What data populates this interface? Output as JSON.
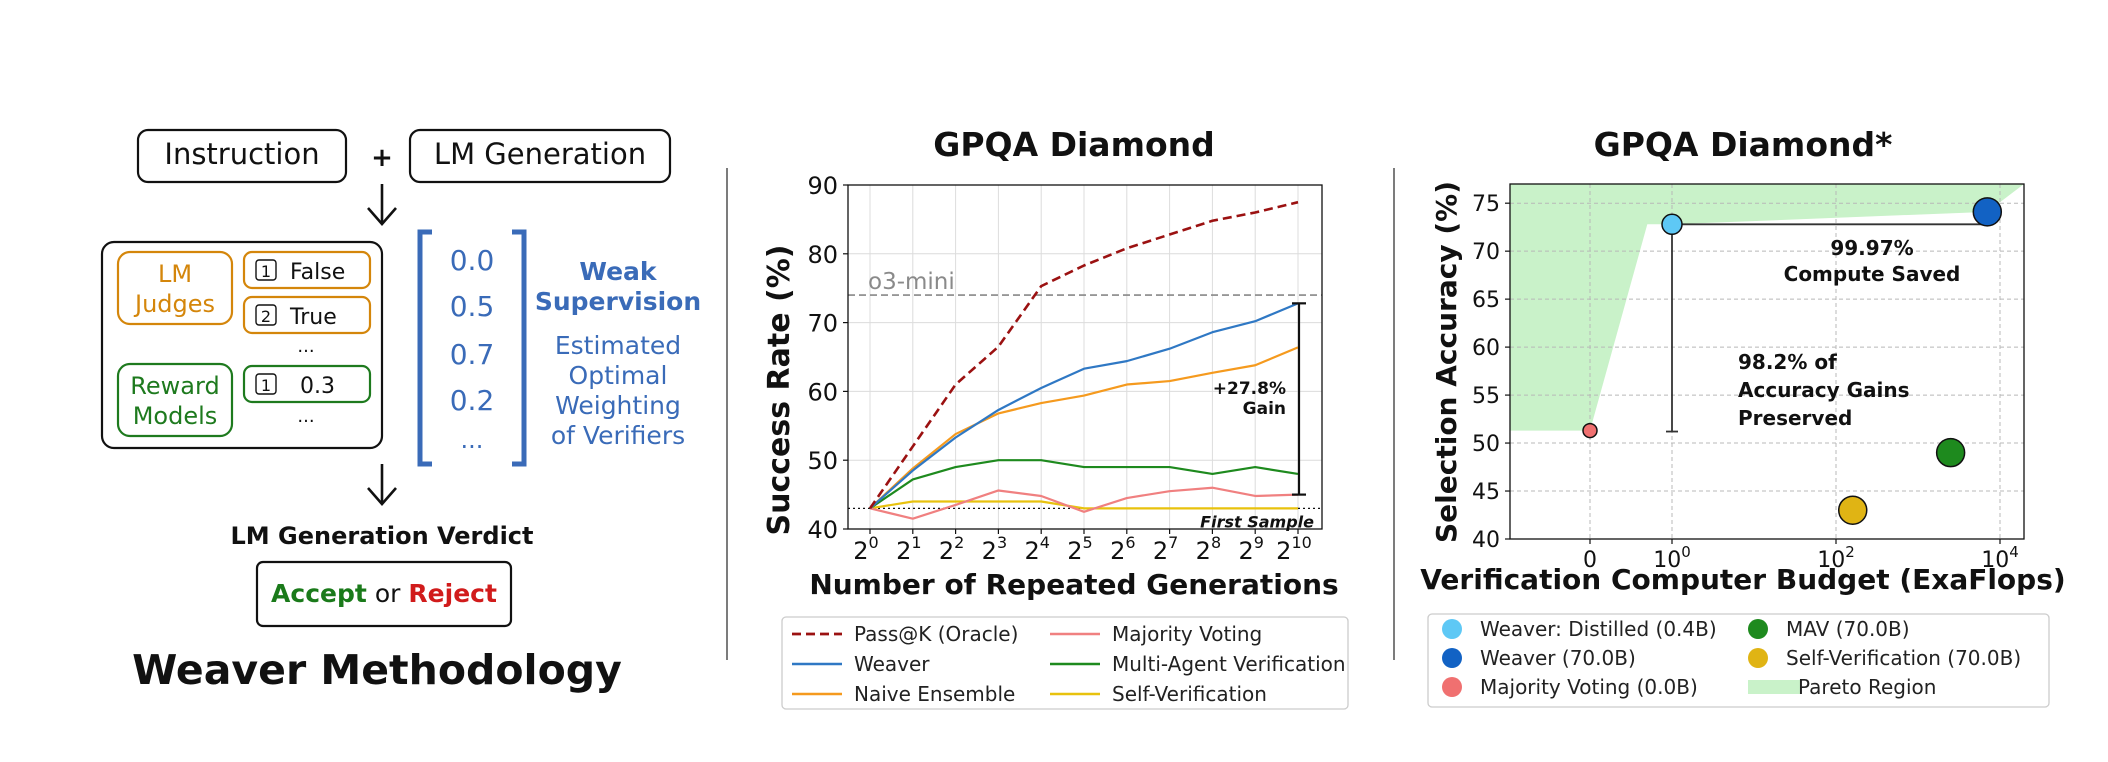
{
  "methodology": {
    "instruction": "Instruction",
    "plus": "+",
    "lm_generation": "LM Generation",
    "lm_judges": [
      "LM",
      "Judges"
    ],
    "judge_rows": [
      {
        "index": "1",
        "value": "False"
      },
      {
        "index": "2",
        "value": "True"
      }
    ],
    "judge_ellipsis": "...",
    "reward_models": [
      "Reward",
      "Models"
    ],
    "reward_rows": [
      {
        "index": "1",
        "value": "0.3"
      }
    ],
    "reward_ellipsis": "...",
    "weights": [
      "0.0",
      "0.5",
      "0.7",
      "0.2",
      "..."
    ],
    "weak_supervision": [
      "Weak",
      "Supervision"
    ],
    "estimated": [
      "Estimated",
      "Optimal",
      "Weighting",
      "of Verifiers"
    ],
    "verdict_title": "LM Generation Verdict",
    "accept": "Accept",
    "or": "or",
    "reject": "Reject",
    "title": "Weaver Methodology",
    "colors": {
      "judge": "#d4860b",
      "reward": "#1e7a1e",
      "weights": "#3a6bb8",
      "accept": "#1a7a1a",
      "reject": "#d11b1b"
    }
  },
  "chart_data": [
    {
      "type": "line",
      "title": "GPQA Diamond",
      "xlabel": "Number of Repeated Generations",
      "ylabel": "Success Rate (%)",
      "x": [
        0,
        1,
        2,
        3,
        4,
        5,
        6,
        7,
        8,
        9,
        10
      ],
      "x_tick_labels": [
        {
          "base": "2",
          "exp": "0"
        },
        {
          "base": "2",
          "exp": "1"
        },
        {
          "base": "2",
          "exp": "2"
        },
        {
          "base": "2",
          "exp": "3"
        },
        {
          "base": "2",
          "exp": "4"
        },
        {
          "base": "2",
          "exp": "5"
        },
        {
          "base": "2",
          "exp": "6"
        },
        {
          "base": "2",
          "exp": "7"
        },
        {
          "base": "2",
          "exp": "8"
        },
        {
          "base": "2",
          "exp": "9"
        },
        {
          "base": "2",
          "exp": "10"
        }
      ],
      "ylim": [
        40,
        90
      ],
      "y_ticks": [
        40,
        50,
        60,
        70,
        80,
        90
      ],
      "grid": true,
      "series": [
        {
          "name": "Pass@K (Oracle)",
          "color": "#9b1111",
          "dash": true,
          "values": [
            43,
            52,
            61,
            66.5,
            75.3,
            78.3,
            80.8,
            82.8,
            84.8,
            86,
            87.5
          ]
        },
        {
          "name": "Weaver",
          "color": "#2f78c4",
          "dash": false,
          "values": [
            43,
            48.5,
            53.3,
            57.3,
            60.5,
            63.3,
            64.4,
            66.2,
            68.6,
            70.2,
            72.8
          ]
        },
        {
          "name": "Naive Ensemble",
          "color": "#f59a1e",
          "dash": false,
          "values": [
            43,
            48.8,
            53.8,
            56.8,
            58.3,
            59.4,
            61,
            61.5,
            62.7,
            63.8,
            66.4
          ]
        },
        {
          "name": "Majority Voting",
          "color": "#f08080",
          "dash": false,
          "values": [
            43,
            41.5,
            43.5,
            45.6,
            44.8,
            42.5,
            44.5,
            45.5,
            46,
            44.8,
            45
          ]
        },
        {
          "name": "Multi-Agent Verification",
          "color": "#1e8a1e",
          "dash": false,
          "values": [
            43,
            47.2,
            49,
            50,
            50,
            49,
            49,
            49,
            48,
            49,
            48
          ]
        },
        {
          "name": "Self-Verification",
          "color": "#e8c20d",
          "dash": false,
          "values": [
            43,
            44,
            44,
            44,
            44,
            43,
            43,
            43,
            43,
            43,
            43
          ]
        }
      ],
      "reference_lines": [
        {
          "label": "o3-mini",
          "value": 74
        },
        {
          "label": "First Sample",
          "value": 43
        }
      ],
      "gain_annotation": {
        "label": [
          "+27.8%",
          "Gain"
        ],
        "from": 45,
        "to": 72.8,
        "x": 10
      }
    },
    {
      "type": "scatter",
      "title": "GPQA Diamond*",
      "xlabel": "Verification Computer Budget (ExaFlops)",
      "ylabel": "Selection Accuracy (%)",
      "x_scale": "symlog",
      "x_tick_labels": [
        {
          "base": "0",
          "exp": ""
        },
        {
          "base": "10",
          "exp": "0"
        },
        {
          "base": "10",
          "exp": "2"
        },
        {
          "base": "10",
          "exp": "4"
        }
      ],
      "ylim": [
        40,
        77
      ],
      "y_ticks": [
        40,
        45,
        50,
        55,
        60,
        65,
        70,
        75
      ],
      "grid": true,
      "points": [
        {
          "name": "Weaver: Distilled (0.4B)",
          "x": 1,
          "y": 72.8,
          "color": "#5ec8f5",
          "size": "small"
        },
        {
          "name": "Weaver (70.0B)",
          "x": 7000,
          "y": 74.1,
          "color": "#1262c4",
          "size": "large"
        },
        {
          "name": "Majority Voting (0.0B)",
          "x": 0,
          "y": 51.3,
          "color": "#f07070",
          "size": "tiny"
        },
        {
          "name": "MAV (70.0B)",
          "x": 2500,
          "y": 49,
          "color": "#1e8a1e",
          "size": "large"
        },
        {
          "name": "Self-Verification (70.0B)",
          "x": 160,
          "y": 43,
          "color": "#e0b414",
          "size": "large"
        }
      ],
      "pareto_region_label": "Pareto Region",
      "pareto_color": "#c9f2c9",
      "annotations": [
        {
          "text": [
            "99.97%",
            "Compute Saved"
          ]
        },
        {
          "text": [
            "98.2% of",
            "Accuracy Gains",
            "Preserved"
          ]
        }
      ],
      "legend": {
        "left": [
          "Weaver: Distilled (0.4B)",
          "Weaver (70.0B)",
          "Majority Voting (0.0B)"
        ],
        "right": [
          "MAV (70.0B)",
          "Self-Verification (70.0B)",
          "Pareto Region"
        ]
      }
    }
  ]
}
